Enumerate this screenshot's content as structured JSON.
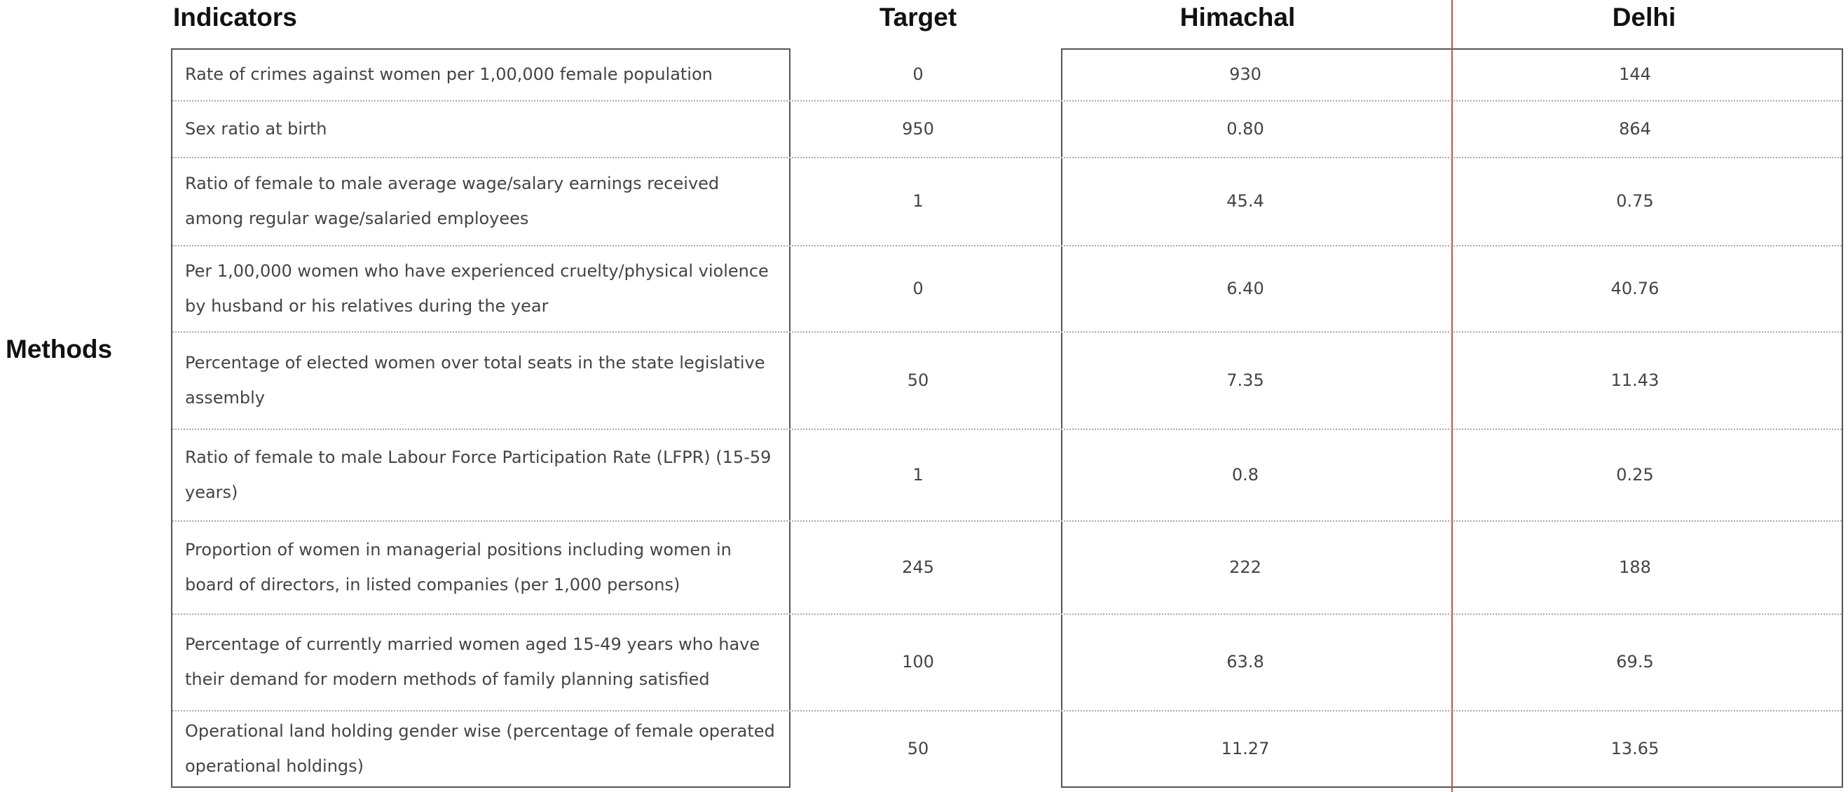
{
  "header": {
    "indicators": "Indicators",
    "target": "Target",
    "himachal": "Himachal",
    "delhi": "Delhi"
  },
  "side_label": "Methods",
  "rows": [
    {
      "indicator": "Rate of crimes against women per 1,00,000 female population",
      "target": "0",
      "himachal": "930",
      "delhi": "144"
    },
    {
      "indicator": "Sex ratio at birth",
      "target": "950",
      "himachal": "0.80",
      "delhi": "864"
    },
    {
      "indicator": "Ratio of female to male average wage/salary earnings received among regular wage/salaried employees",
      "target": "1",
      "himachal": "45.4",
      "delhi": "0.75"
    },
    {
      "indicator": "Per 1,00,000 women who have experienced cruelty/physical violence by husband or his relatives during the year",
      "target": "0",
      "himachal": "6.40",
      "delhi": "40.76"
    },
    {
      "indicator": "Percentage of elected women over total seats in the state legislative assembly",
      "target": "50",
      "himachal": "7.35",
      "delhi": "11.43"
    },
    {
      "indicator": "Ratio of female to male Labour Force Participation Rate (LFPR) (15-59 years)",
      "target": "1",
      "himachal": "0.8",
      "delhi": "0.25"
    },
    {
      "indicator": "Proportion of women in managerial positions including women in board of directors, in listed companies (per 1,000 persons)",
      "target": "245",
      "himachal": "222",
      "delhi": "188"
    },
    {
      "indicator": "Percentage of currently married women aged 15-49 years who have their demand for modern methods of family planning satisfied",
      "target": "100",
      "himachal": "63.8",
      "delhi": "69.5"
    },
    {
      "indicator": "Operational land holding gender wise (percentage of female operated operational holdings)",
      "target": "50",
      "himachal": "11.27",
      "delhi": "13.65"
    }
  ]
}
